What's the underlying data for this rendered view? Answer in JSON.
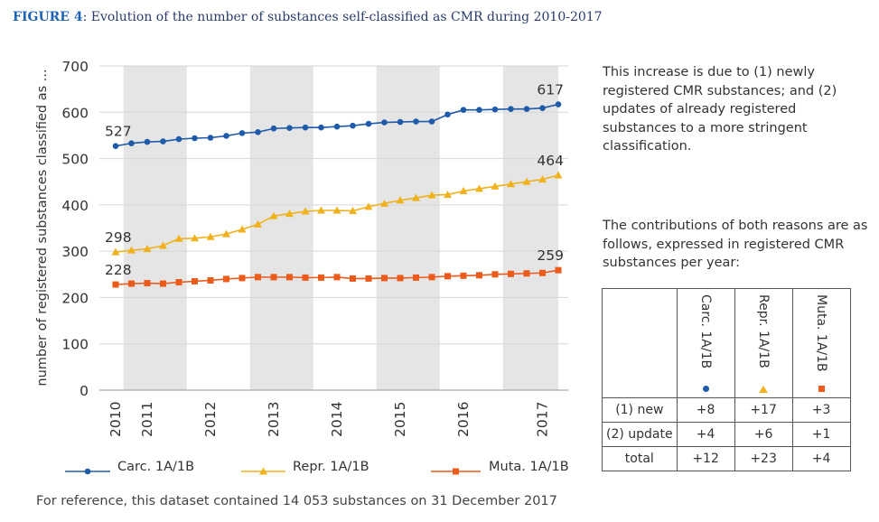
{
  "figure": {
    "number": "FIGURE 4",
    "title": ": Evolution of the number of substances self-classified as CMR during 2010-2017"
  },
  "chart_data": {
    "type": "line",
    "ylabel": "number of registered substances classified as ...",
    "ylim": [
      0,
      700
    ],
    "yticks": [
      "0",
      "100",
      "200",
      "300",
      "400",
      "500",
      "600",
      "700"
    ],
    "x_year_labels": [
      "2010",
      "2011",
      "2012",
      "2013",
      "2014",
      "2015",
      "2016",
      "2017"
    ],
    "x_year_positions": [
      0,
      2,
      6,
      10,
      14,
      18,
      22,
      27
    ],
    "shaded_bands": [
      [
        0.5,
        4.5
      ],
      [
        8.5,
        12.5
      ],
      [
        16.5,
        20.5
      ],
      [
        24.5,
        28
      ]
    ],
    "grid": "horizontal",
    "legend_position": "bottom",
    "series": [
      {
        "name": "Carc. 1A/1B",
        "color": "#1f5ba8",
        "marker": "circle",
        "values": [
          527,
          533,
          536,
          537,
          542,
          544,
          545,
          549,
          555,
          557,
          565,
          566,
          567,
          567,
          569,
          571,
          575,
          578,
          579,
          580,
          580,
          595,
          605,
          605,
          606,
          607,
          607,
          609,
          617
        ],
        "start_label": "527",
        "end_label": "617"
      },
      {
        "name": "Repr. 1A/1B",
        "color": "#f0b21c",
        "marker": "triangle",
        "values": [
          298,
          302,
          305,
          312,
          327,
          328,
          331,
          337,
          347,
          358,
          376,
          381,
          386,
          388,
          388,
          387,
          396,
          403,
          410,
          415,
          421,
          422,
          430,
          435,
          440,
          445,
          450,
          455,
          464
        ],
        "start_label": "298",
        "end_label": "464"
      },
      {
        "name": "Muta. 1A/1B",
        "color": "#ea5b1c",
        "marker": "square",
        "values": [
          228,
          230,
          231,
          230,
          233,
          235,
          237,
          240,
          242,
          244,
          244,
          244,
          243,
          243,
          244,
          241,
          241,
          242,
          242,
          243,
          244,
          246,
          247,
          248,
          250,
          251,
          252,
          253,
          259
        ],
        "start_label": "228",
        "end_label": "259"
      }
    ]
  },
  "notes": {
    "reason_intro": "This increase is due to (1) newly registered CMR substances; and (2) updates of already registered substances to a more stringent classification.",
    "contrib_intro": "The contributions of both reasons are as follows, expressed in registered CMR substances per year:"
  },
  "contrib_table": {
    "columns": [
      "Carc. 1A/1B",
      "Repr. 1A/1B",
      "Muta. 1A/1B"
    ],
    "rows": [
      {
        "label": "(1) new",
        "values": [
          "+8",
          "+17",
          "+3"
        ]
      },
      {
        "label": "(2) update",
        "values": [
          "+4",
          "+6",
          "+1"
        ]
      },
      {
        "label": "total",
        "values": [
          "+12",
          "+23",
          "+4"
        ]
      }
    ]
  },
  "legend": {
    "items": [
      "Carc. 1A/1B",
      "Repr. 1A/1B",
      "Muta. 1A/1B"
    ]
  },
  "footnote": "For reference, this dataset contained 14 053 substances on 31 December 2017"
}
